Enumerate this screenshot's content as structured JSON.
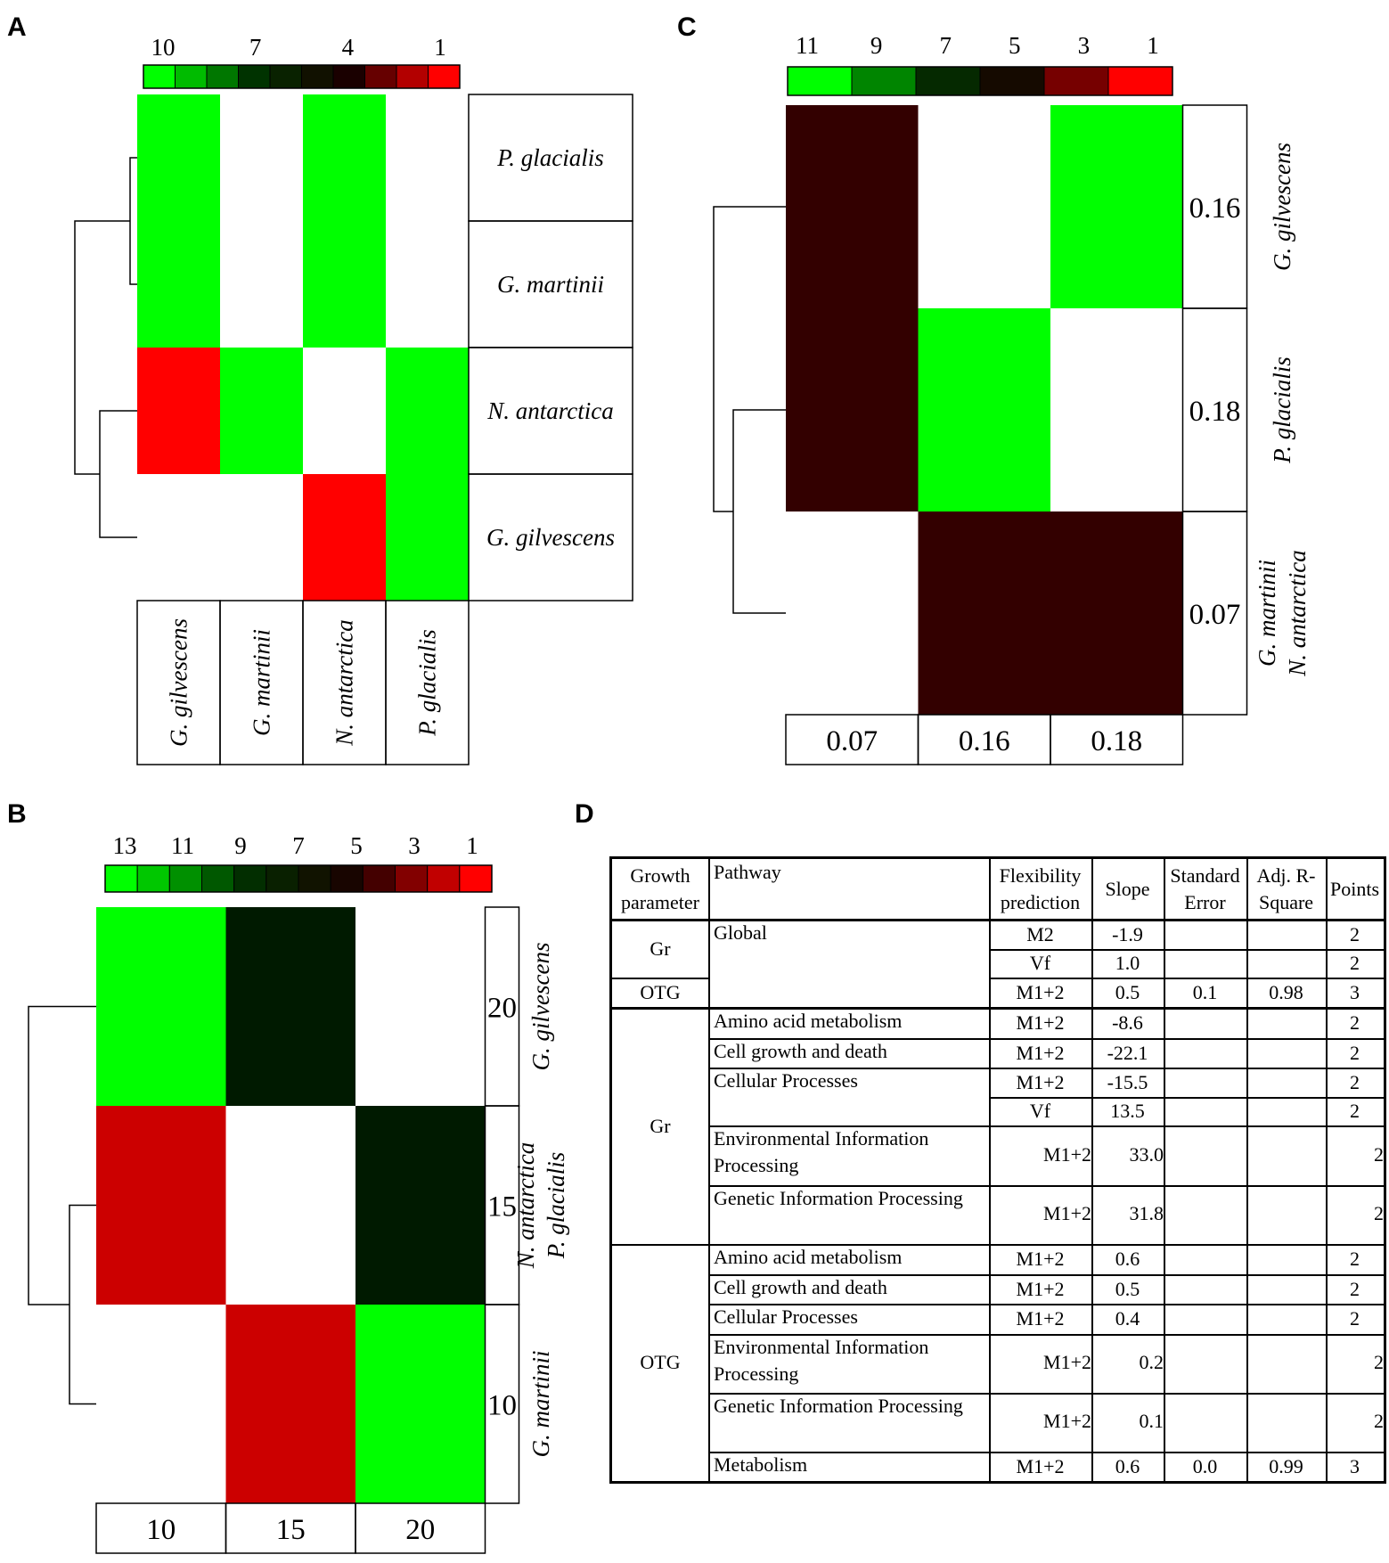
{
  "panels": {
    "A": "A",
    "B": "B",
    "C": "C",
    "D": "D"
  },
  "colors": {
    "green": "#00ff00",
    "red": "#ff0000",
    "dark_red": "#330000",
    "dark_green": "#001a00",
    "mid_red": "#cc0000"
  },
  "chart_data": [
    {
      "panel": "A",
      "type": "heatmap",
      "colorbar_ticks": [
        "10",
        "7",
        "4",
        "1"
      ],
      "rows": [
        "P. glacialis",
        "G. martinii",
        "N. antarctica",
        "G. gilvescens"
      ],
      "columns": [
        "G. gilvescens",
        "G. martinii",
        "N. antarctica",
        "P. glacialis"
      ],
      "cell_colors": [
        [
          "#00ff00",
          "#ffffff",
          "#00ff00",
          "#ffffff"
        ],
        [
          "#00ff00",
          "#ffffff",
          "#00ff00",
          "#ffffff"
        ],
        [
          "#ff0000",
          "#00ff00",
          "#ffffff",
          "#00ff00"
        ],
        [
          "#ffffff",
          "#ffffff",
          "#ff0000",
          "#00ff00"
        ]
      ],
      "dendrogram": "rows"
    },
    {
      "panel": "B",
      "type": "heatmap",
      "colorbar_ticks": [
        "13",
        "11",
        "9",
        "7",
        "5",
        "3",
        "1"
      ],
      "row_values": [
        "20",
        "15",
        "10"
      ],
      "row_labels": [
        [
          "G. gilvescens"
        ],
        [
          "N. antarctica",
          "P. glacialis"
        ],
        [
          "G. martinii"
        ]
      ],
      "column_values": [
        "10",
        "15",
        "20"
      ],
      "cell_colors": [
        [
          "#00ff00",
          "#001a00",
          "#ffffff"
        ],
        [
          "#cc0000",
          "#ffffff",
          "#001a00"
        ],
        [
          "#ffffff",
          "#cc0000",
          "#00ff00"
        ]
      ],
      "dendrogram": "rows"
    },
    {
      "panel": "C",
      "type": "heatmap",
      "colorbar_ticks": [
        "11",
        "9",
        "7",
        "5",
        "3",
        "1"
      ],
      "row_values": [
        "0.16",
        "0.18",
        "0.07"
      ],
      "row_labels": [
        [
          "G. gilvescens"
        ],
        [
          "P. glacialis"
        ],
        [
          "G. martinii",
          "N. antarctica"
        ]
      ],
      "column_values": [
        "0.07",
        "0.16",
        "0.18"
      ],
      "cell_colors": [
        [
          "#330000",
          "#ffffff",
          "#00ff00"
        ],
        [
          "#330000",
          "#00ff00",
          "#ffffff"
        ],
        [
          "#ffffff",
          "#330000",
          "#330000"
        ]
      ],
      "dendrogram": "rows"
    },
    {
      "panel": "D",
      "type": "table",
      "headers": [
        "Growth parameter",
        "Pathway",
        "Flexibility prediction",
        "Slope",
        "Standard Error",
        "Adj. R-Square",
        "Points"
      ],
      "header_lines": [
        [
          "Growth",
          "parameter"
        ],
        [
          "Pathway"
        ],
        [
          "Flexibility",
          "prediction"
        ],
        [
          "Slope"
        ],
        [
          "Standard",
          "Error"
        ],
        [
          "Adj. R-",
          "Square"
        ],
        [
          "Points"
        ]
      ],
      "rows": [
        {
          "growth": "Gr",
          "pathway": "Global",
          "flex": "M2",
          "slope": "-1.9",
          "se": "",
          "r2": "",
          "points": "2"
        },
        {
          "growth": "Gr",
          "pathway": "Global",
          "flex": "Vf",
          "slope": "1.0",
          "se": "",
          "r2": "",
          "points": "2"
        },
        {
          "growth": "OTG",
          "pathway": "Global",
          "flex": "M1+2",
          "slope": "0.5",
          "se": "0.1",
          "r2": "0.98",
          "points": "3"
        },
        {
          "growth": "Gr",
          "pathway": "Amino acid metabolism",
          "flex": "M1+2",
          "slope": "-8.6",
          "se": "",
          "r2": "",
          "points": "2"
        },
        {
          "growth": "Gr",
          "pathway": "Cell growth and death",
          "flex": "M1+2",
          "slope": "-22.1",
          "se": "",
          "r2": "",
          "points": "2"
        },
        {
          "growth": "Gr",
          "pathway": "Cellular Processes",
          "flex": "M1+2",
          "slope": "-15.5",
          "se": "",
          "r2": "",
          "points": "2"
        },
        {
          "growth": "Gr",
          "pathway": "Cellular Processes",
          "flex": "Vf",
          "slope": "13.5",
          "se": "",
          "r2": "",
          "points": "2"
        },
        {
          "growth": "Gr",
          "pathway": "Environmental Information Processing",
          "flex": "M1+2",
          "slope": "33.0",
          "se": "",
          "r2": "",
          "points": "2"
        },
        {
          "growth": "Gr",
          "pathway": "Genetic Information Processing",
          "flex": "M1+2",
          "slope": "31.8",
          "se": "",
          "r2": "",
          "points": "2"
        },
        {
          "growth": "OTG",
          "pathway": "Amino acid metabolism",
          "flex": "M1+2",
          "slope": "0.6",
          "se": "",
          "r2": "",
          "points": "2"
        },
        {
          "growth": "OTG",
          "pathway": "Cell growth and death",
          "flex": "M1+2",
          "slope": "0.5",
          "se": "",
          "r2": "",
          "points": "2"
        },
        {
          "growth": "OTG",
          "pathway": "Cellular Processes",
          "flex": "M1+2",
          "slope": "0.4",
          "se": "",
          "r2": "",
          "points": "2"
        },
        {
          "growth": "OTG",
          "pathway": "Environmental Information Processing",
          "flex": "M1+2",
          "slope": "0.2",
          "se": "",
          "r2": "",
          "points": "2"
        },
        {
          "growth": "OTG",
          "pathway": "Genetic Information Processing",
          "flex": "M1+2",
          "slope": "0.1",
          "se": "",
          "r2": "",
          "points": "2"
        },
        {
          "growth": "OTG",
          "pathway": "Metabolism",
          "flex": "M1+2",
          "slope": "0.6",
          "se": "0.0",
          "r2": "0.99",
          "points": "3"
        }
      ],
      "pathway_lines": {
        "Environmental Information Processing": [
          "Environmental Information",
          "Processing"
        ]
      }
    }
  ]
}
